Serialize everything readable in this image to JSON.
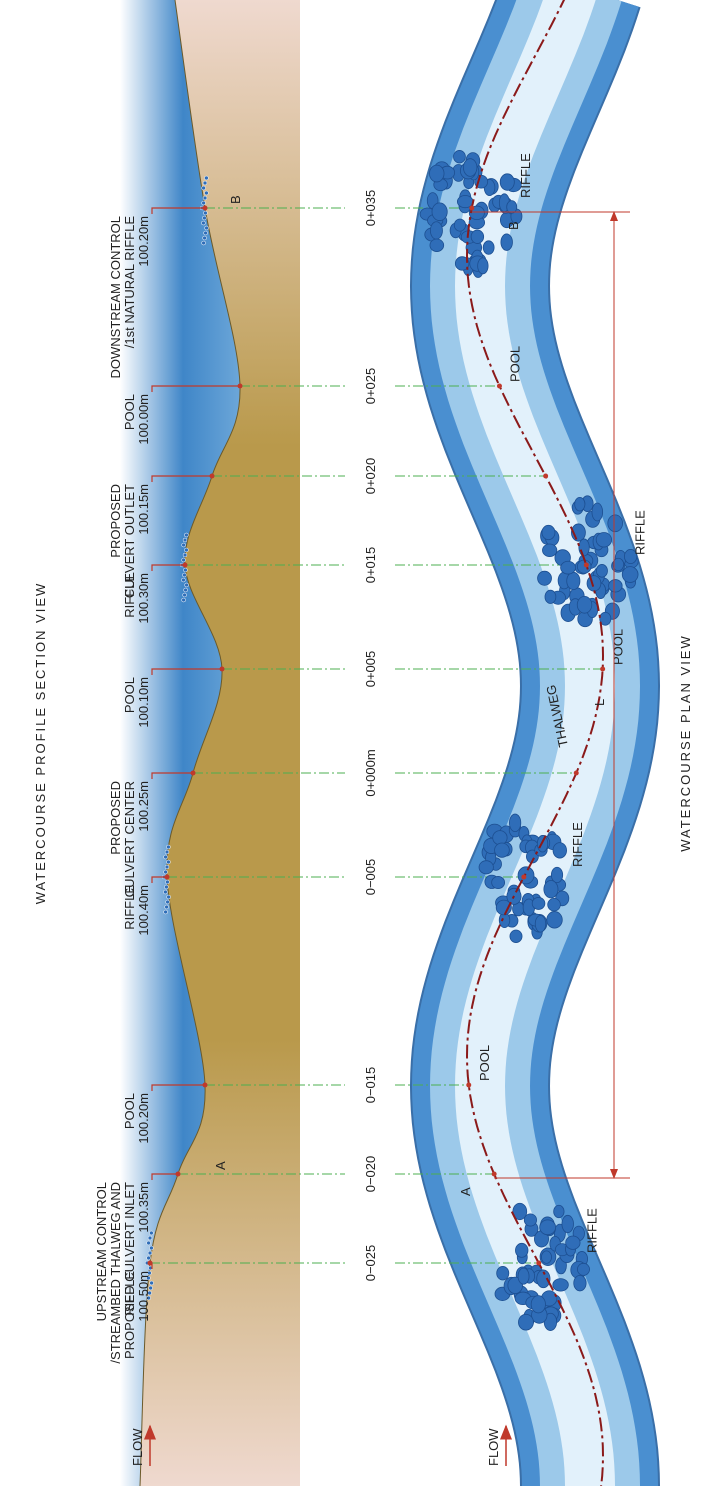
{
  "profile": {
    "title": "WATERCOURSE PROFILE SECTION VIEW",
    "flow": "FLOW",
    "point_a": "A",
    "point_b": "B",
    "callouts": [
      {
        "lines": [
          "RIFFLE",
          "100.50m"
        ]
      },
      {
        "lines": [
          "UPSTREAM CONTROL",
          "/STREAMBED THALWEG AND",
          "PROPOSED CULVERT INLET",
          "100.35m"
        ]
      },
      {
        "lines": [
          "POOL",
          "100.20m"
        ]
      },
      {
        "lines": [
          "RIFFLE",
          "100.40m"
        ]
      },
      {
        "lines": [
          "PROPOSED",
          "CULVERT CENTER",
          "100.25m"
        ]
      },
      {
        "lines": [
          "POOL",
          "100.10m"
        ]
      },
      {
        "lines": [
          "RIFFLE",
          "100.30m"
        ]
      },
      {
        "lines": [
          "PROPOSED",
          "CULVERT OUTLET",
          "100.15m"
        ]
      },
      {
        "lines": [
          "POOL",
          "100.00m"
        ]
      },
      {
        "lines": [
          "DOWNSTREAM CONTROL",
          "/1st NATURAL RIFFLE",
          "100.20m"
        ]
      }
    ]
  },
  "stations": [
    "0−025",
    "0−020",
    "0−015",
    "0−005",
    "0+000m",
    "0+005",
    "0+015",
    "0+020",
    "0+025",
    "0+035"
  ],
  "plan": {
    "title": "WATERCOURSE PLAN VIEW",
    "flow": "FLOW",
    "point_a": "A",
    "point_b": "B",
    "length": "L",
    "thalweg": "THALWEG",
    "labels": [
      "RIFFLE",
      "POOL",
      "RIFFLE",
      "POOL",
      "RIFFLE",
      "POOL",
      "RIFFLE"
    ]
  }
}
